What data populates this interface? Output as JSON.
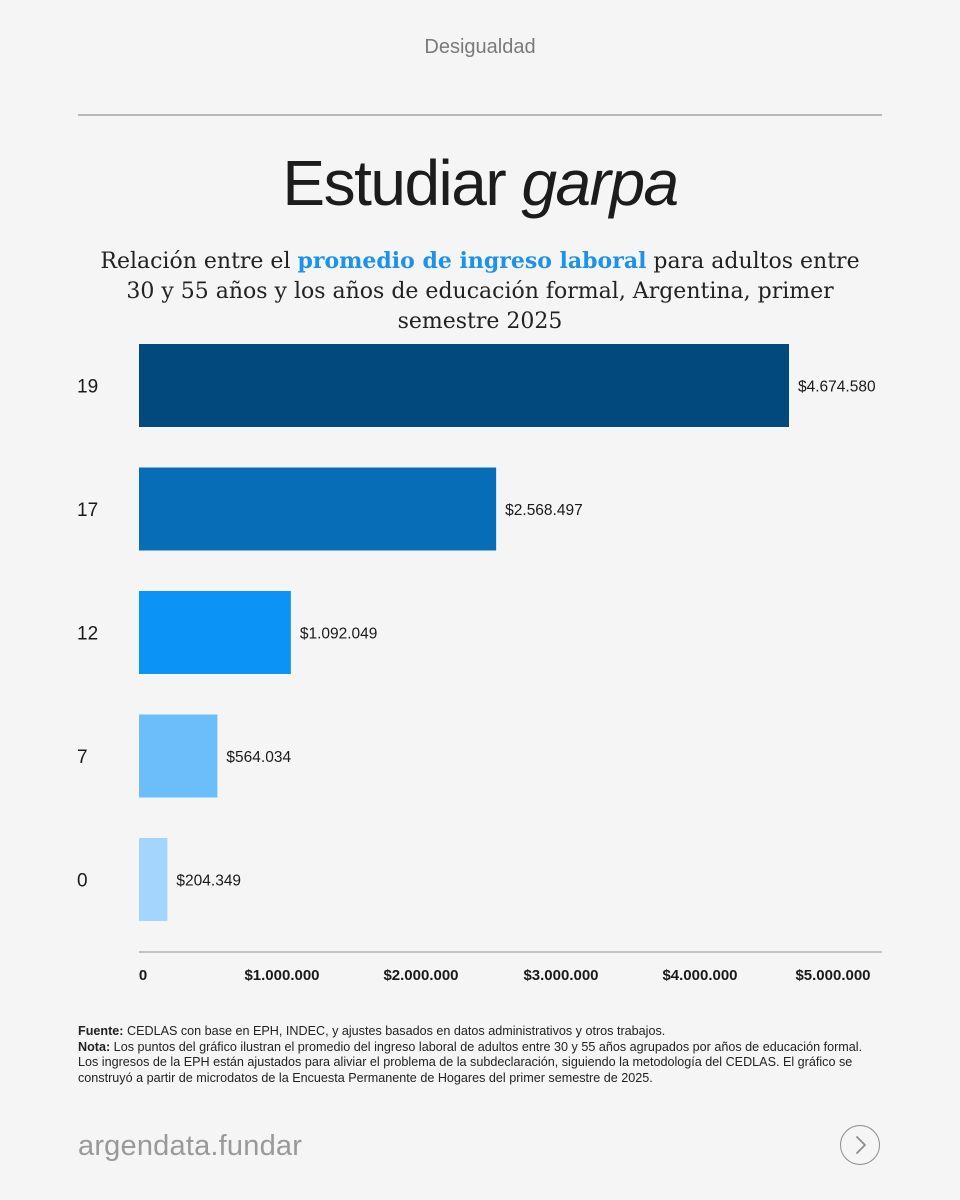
{
  "header": {
    "kicker": "Desigualdad"
  },
  "title": {
    "main": "Estudiar",
    "emph": "garpa"
  },
  "subtitle": {
    "before": "Relación entre el ",
    "highlight": "promedio de ingreso laboral",
    "after": " para adultos entre 30 y 55 años y los años de educación formal, Argentina, primer semestre 2025"
  },
  "chart_data": {
    "type": "bar",
    "orientation": "horizontal",
    "categories": [
      "19",
      "17",
      "12",
      "7",
      "0"
    ],
    "values": [
      4674580,
      2568497,
      1092049,
      564034,
      204349
    ],
    "value_labels": [
      "$4.674.580",
      "$2.568.497",
      "$1.092.049",
      "$564.034",
      "$204.349"
    ],
    "colors": [
      "#02497e",
      "#076db7",
      "#0b93f5",
      "#6cbefb",
      "#a4d6fd"
    ],
    "xlim": [
      0,
      5000000
    ],
    "x_ticks": [
      0,
      1000000,
      2000000,
      3000000,
      4000000,
      5000000
    ],
    "x_tick_labels": [
      "0",
      "$1.000.000",
      "$2.000.000",
      "$3.000.000",
      "$4.000.000",
      "$5.000.000"
    ],
    "grid": false
  },
  "notes": {
    "source_label": "Fuente:",
    "source_text": " CEDLAS con base en EPH, INDEC, y ajustes basados en datos administrativos y otros trabajos.",
    "note_label": "Nota:",
    "note_text": " Los puntos del gráfico ilustran el promedio del ingreso laboral de adultos entre 30 y 55 años agrupados por años de educación formal. Los ingresos de la EPH están ajustados para aliviar el problema de la subdeclaración, siguiendo la metodología del CEDLAS. El gráfico se construyó a partir de microdatos de la Encuesta Permanente de Hogares del primer semestre de 2025."
  },
  "footer": {
    "brand": "argendata.fundar",
    "next_icon": "chevron-right-icon"
  }
}
